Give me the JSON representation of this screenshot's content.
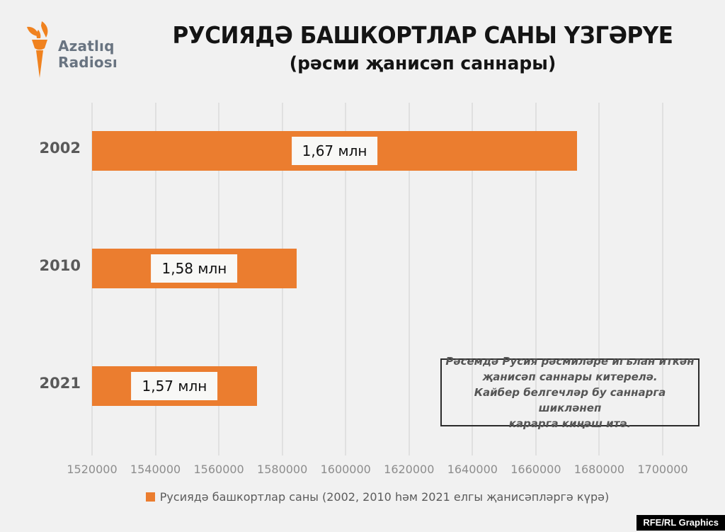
{
  "brand": {
    "line1": "Azatlıq",
    "line2": "Radiosı"
  },
  "header": {
    "title": "РУСИЯДӘ БАШКОРТЛАР САНЫ ҮЗГӘРҮЕ",
    "subtitle": "(рәсми җанисәп саннары)"
  },
  "chart_data": {
    "type": "bar",
    "orientation": "horizontal",
    "title": "РУСИЯДӘ БАШКОРТЛАР САНЫ ҮЗГӘРҮЕ (рәсми җанисәп саннары)",
    "categories": [
      "2002",
      "2010",
      "2021"
    ],
    "values": [
      1673000,
      1584500,
      1572000
    ],
    "value_labels": [
      "1,67 млн",
      "1,58 млн",
      "1,57 млн"
    ],
    "xlim": [
      1520000,
      1700000
    ],
    "x_ticks": [
      1520000,
      1540000,
      1560000,
      1580000,
      1600000,
      1620000,
      1640000,
      1660000,
      1680000,
      1700000
    ],
    "x_tick_labels": [
      "1520000",
      "1540000",
      "1560000",
      "1580000",
      "1600000",
      "1620000",
      "1640000",
      "1660000",
      "1680000",
      "1700000"
    ],
    "grid": true,
    "legend_position": "bottom",
    "legend": "Русиядә башкортлар саны (2002, 2010 һәм 2021 елгы җанисәпләргә күрә)"
  },
  "annotation": {
    "text": "Рәсемдә Русия рәсмиләре игълан иткән\nҗанисәп саннары китерелә.\nКайбер белгечләр бу саннарга шикләнеп\nкарарга киңәш итә."
  },
  "footer": {
    "credit": "RFE/RL Graphics"
  },
  "colors": {
    "bar_orange": "#EB7D2F",
    "logo_orange": "#F0821F",
    "background": "#F1F1F1",
    "grid": "#E0E0E0",
    "label_box": "#F8F8F6",
    "year_label": "#595959",
    "tick_label": "#8D8D8D",
    "annotation_border": "#2B2B2B",
    "credit_bg": "#000000"
  }
}
